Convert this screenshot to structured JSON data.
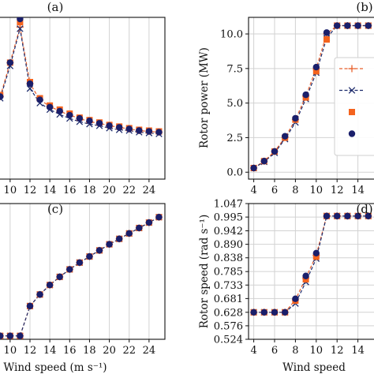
{
  "chart_data": [
    {
      "type": "line",
      "panel": "a",
      "panel_label": "(a)",
      "xlabel": "Wind speed (m s⁻¹)",
      "ylabel": "",
      "xlim": [
        8.9,
        25.6
      ],
      "ylim": [
        0,
        1
      ],
      "xticks": [
        10,
        12,
        14,
        16,
        18,
        20,
        22,
        24
      ],
      "x_tick_labels": [
        "10",
        "12",
        "14",
        "16",
        "18",
        "20",
        "22",
        "24"
      ],
      "yticks": [],
      "grid": true,
      "x": [
        9,
        10,
        11,
        12,
        13,
        14,
        15,
        16,
        17,
        18,
        19,
        20,
        21,
        22,
        23,
        24,
        25
      ],
      "series": [
        {
          "marker": "plus",
          "line": "dashed",
          "color": "#e8602c",
          "values": [
            0.51,
            0.72,
            0.94,
            0.59,
            0.49,
            0.45,
            0.42,
            0.395,
            0.375,
            0.355,
            0.345,
            0.33,
            0.32,
            0.31,
            0.3,
            0.295,
            0.29
          ]
        },
        {
          "marker": "x",
          "line": "dashed",
          "color": "#1c2a6b",
          "values": [
            0.5,
            0.7,
            0.93,
            0.56,
            0.47,
            0.43,
            0.4,
            0.375,
            0.355,
            0.34,
            0.33,
            0.315,
            0.305,
            0.3,
            0.29,
            0.285,
            0.28
          ]
        },
        {
          "marker": "square",
          "line": "none",
          "color": "#f4631e",
          "values": [
            0.52,
            0.72,
            0.97,
            0.6,
            0.5,
            0.455,
            0.43,
            0.405,
            0.38,
            0.365,
            0.35,
            0.335,
            0.325,
            0.315,
            0.305,
            0.3,
            0.295
          ]
        },
        {
          "marker": "circle",
          "line": "none",
          "color": "#1a1f6b",
          "values": [
            0.51,
            0.72,
            0.99,
            0.59,
            0.49,
            0.445,
            0.42,
            0.395,
            0.375,
            0.36,
            0.345,
            0.33,
            0.32,
            0.31,
            0.3,
            0.295,
            0.29
          ]
        }
      ]
    },
    {
      "type": "line",
      "panel": "b",
      "panel_label": "(b)",
      "xlabel": "Wind speed",
      "ylabel": "Rotor power (MW)",
      "xlim": [
        3.5,
        16
      ],
      "ylim": [
        -0.5,
        11.2
      ],
      "xticks": [
        4,
        6,
        8,
        10,
        12,
        14
      ],
      "x_tick_labels": [
        "4",
        "6",
        "8",
        "10",
        "12",
        "14"
      ],
      "yticks": [
        0.0,
        2.5,
        5.0,
        7.5,
        10.0
      ],
      "y_tick_labels": [
        "0.0",
        "2.5",
        "5.0",
        "7.5",
        "10.0"
      ],
      "grid": true,
      "legend": "right",
      "x": [
        4,
        5,
        6,
        7,
        8,
        9,
        10,
        11,
        12,
        13,
        14,
        15
      ],
      "series": [
        {
          "marker": "plus",
          "line": "dashed",
          "color": "#e8602c",
          "values": [
            0.3,
            0.8,
            1.5,
            2.5,
            3.8,
            5.5,
            7.5,
            10.0,
            10.6,
            10.6,
            10.6,
            10.6
          ]
        },
        {
          "marker": "x",
          "line": "dashed",
          "color": "#1c2a6b",
          "values": [
            0.3,
            0.75,
            1.4,
            2.4,
            3.6,
            5.3,
            7.2,
            9.7,
            10.6,
            10.6,
            10.6,
            10.6
          ]
        },
        {
          "marker": "square",
          "line": "none",
          "color": "#f4631e",
          "values": [
            0.3,
            0.8,
            1.5,
            2.5,
            3.8,
            5.4,
            7.3,
            9.6,
            10.6,
            10.6,
            10.6,
            10.6
          ]
        },
        {
          "marker": "circle",
          "line": "none",
          "color": "#1a1f6b",
          "values": [
            0.3,
            0.8,
            1.5,
            2.6,
            3.9,
            5.6,
            7.6,
            10.1,
            10.6,
            10.6,
            10.6,
            10.6
          ]
        }
      ]
    },
    {
      "type": "line",
      "panel": "c",
      "panel_label": "(c)",
      "xlabel": "Wind speed (m s⁻¹)",
      "ylabel": "",
      "xlim": [
        8.9,
        25.6
      ],
      "ylim": [
        0,
        1
      ],
      "xticks": [
        10,
        12,
        14,
        16,
        18,
        20,
        22,
        24
      ],
      "x_tick_labels": [
        "10",
        "12",
        "14",
        "16",
        "18",
        "20",
        "22",
        "24"
      ],
      "yticks": [],
      "grid": true,
      "x": [
        9,
        10,
        11,
        12,
        13,
        14,
        15,
        16,
        17,
        18,
        19,
        20,
        21,
        22,
        23,
        24,
        25
      ],
      "series": [
        {
          "marker": "plus",
          "line": "dashed",
          "color": "#e8602c",
          "values": [
            0.025,
            0.025,
            0.025,
            0.245,
            0.33,
            0.4,
            0.46,
            0.515,
            0.565,
            0.61,
            0.655,
            0.7,
            0.74,
            0.78,
            0.82,
            0.86,
            0.9
          ]
        },
        {
          "marker": "x",
          "line": "dashed",
          "color": "#1c2a6b",
          "values": [
            0.025,
            0.025,
            0.025,
            0.245,
            0.33,
            0.4,
            0.46,
            0.515,
            0.565,
            0.61,
            0.655,
            0.7,
            0.74,
            0.78,
            0.82,
            0.86,
            0.9
          ]
        },
        {
          "marker": "square",
          "line": "none",
          "color": "#f4631e",
          "values": [
            0.025,
            0.025,
            0.025,
            0.245,
            0.33,
            0.4,
            0.46,
            0.515,
            0.565,
            0.61,
            0.655,
            0.7,
            0.74,
            0.78,
            0.82,
            0.86,
            0.9
          ]
        },
        {
          "marker": "circle",
          "line": "none",
          "color": "#1a1f6b",
          "values": [
            0.025,
            0.025,
            0.025,
            0.245,
            0.33,
            0.4,
            0.46,
            0.515,
            0.565,
            0.61,
            0.655,
            0.7,
            0.74,
            0.78,
            0.82,
            0.86,
            0.9
          ]
        }
      ]
    },
    {
      "type": "line",
      "panel": "d",
      "panel_label": "(d)",
      "xlabel": "Wind speed",
      "ylabel": "Rotor speed (rad s⁻¹)",
      "xlim": [
        3.5,
        16
      ],
      "ylim": [
        0.524,
        1.047
      ],
      "xticks": [
        4,
        6,
        8,
        10,
        12,
        14
      ],
      "x_tick_labels": [
        "4",
        "6",
        "8",
        "10",
        "12",
        "14"
      ],
      "yticks": [
        0.524,
        0.576,
        0.628,
        0.681,
        0.733,
        0.785,
        0.838,
        0.89,
        0.942,
        0.995,
        1.047
      ],
      "y_tick_labels": [
        "0.524",
        "0.576",
        "0.628",
        "0.681",
        "0.733",
        "0.785",
        "0.838",
        "0.890",
        "0.942",
        "0.995",
        "1.047"
      ],
      "grid": true,
      "x": [
        4,
        5,
        6,
        7,
        8,
        9,
        10,
        11,
        12,
        13,
        14,
        15
      ],
      "series": [
        {
          "marker": "plus",
          "line": "dashed",
          "color": "#e8602c",
          "values": [
            0.628,
            0.628,
            0.628,
            0.628,
            0.676,
            0.76,
            0.848,
            0.999,
            0.999,
            0.999,
            0.999,
            0.999
          ]
        },
        {
          "marker": "x",
          "line": "dashed",
          "color": "#1c2a6b",
          "values": [
            0.628,
            0.628,
            0.628,
            0.628,
            0.662,
            0.745,
            0.835,
            0.999,
            0.999,
            0.999,
            0.999,
            0.999
          ]
        },
        {
          "marker": "square",
          "line": "none",
          "color": "#f4631e",
          "values": [
            0.628,
            0.628,
            0.628,
            0.628,
            0.673,
            0.755,
            0.842,
            0.999,
            0.999,
            0.999,
            0.999,
            0.999
          ]
        },
        {
          "marker": "circle",
          "line": "none",
          "color": "#1a1f6b",
          "values": [
            0.628,
            0.628,
            0.628,
            0.628,
            0.68,
            0.768,
            0.856,
            0.999,
            0.999,
            0.999,
            0.999,
            0.999
          ]
        }
      ]
    }
  ]
}
